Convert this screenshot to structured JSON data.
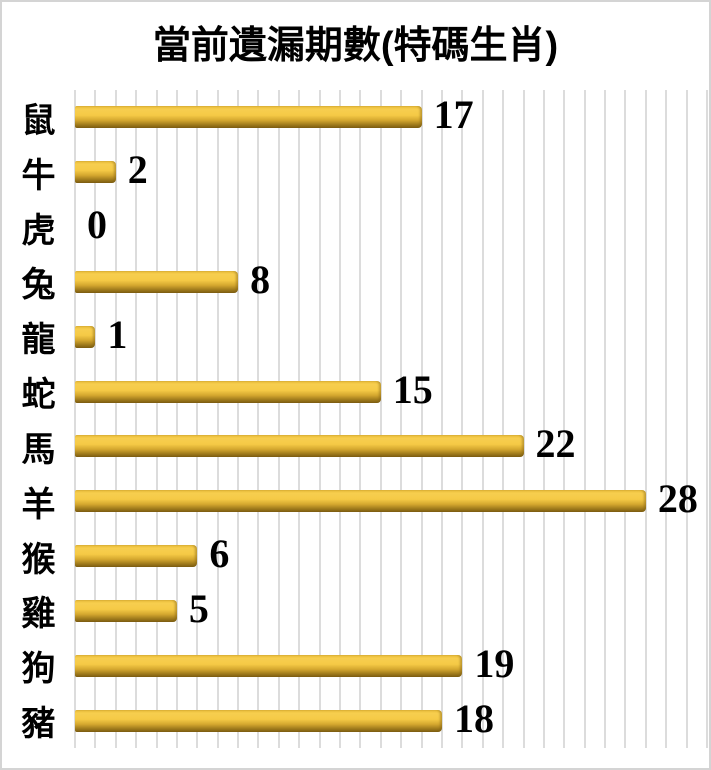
{
  "window": {
    "background_color": "#FFFFFF",
    "border_color": "#D4D4D4"
  },
  "chart_data": {
    "type": "bar",
    "orientation": "horizontal",
    "title": "當前遺漏期數(特碼生肖)",
    "categories": [
      "鼠",
      "牛",
      "虎",
      "兔",
      "龍",
      "蛇",
      "馬",
      "羊",
      "猴",
      "雞",
      "狗",
      "豬"
    ],
    "values": [
      17,
      2,
      0,
      8,
      1,
      15,
      22,
      28,
      6,
      5,
      19,
      18
    ],
    "xlabel": "",
    "ylabel": "",
    "xlim": [
      0,
      31
    ],
    "gridline_step": 1,
    "grid": "vertical-gridlines-only",
    "legend": "none",
    "value_labels": "shown-at-bar-end",
    "bar_color_top": "#F7CE4F",
    "bar_color_bottom": "#7C5D11",
    "gridline_color": "#DCDCDC",
    "title_color": "#000000",
    "value_label_color": "#000000"
  }
}
